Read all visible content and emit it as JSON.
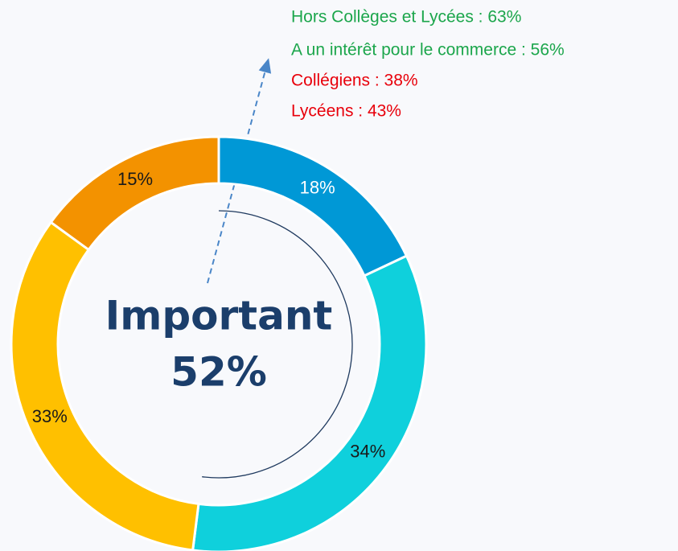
{
  "chart_data": {
    "type": "donut",
    "categories": [
      null,
      null,
      null,
      null
    ],
    "values": [
      18,
      34,
      33,
      15
    ],
    "value_labels": [
      "18%",
      "34%",
      "33%",
      "15%"
    ],
    "colors": [
      "#0098d6",
      "#0fd0dc",
      "#ffc000",
      "#f39200"
    ],
    "label_colors": [
      "#ffffff",
      "#1a1a1a",
      "#1a1a1a",
      "#1a1a1a"
    ],
    "center_title": "Important",
    "center_value": 52,
    "center_value_label": "52%",
    "annotations": [
      {
        "text": "Hors Collèges et Lycées : 63%",
        "color": "#1ca64c"
      },
      {
        "text": "A un intérêt pour le commerce : 56%",
        "color": "#1ca64c"
      },
      {
        "text": "Collégiens : 38%",
        "color": "#e8000b"
      },
      {
        "text": "Lycéens : 43%",
        "color": "#e8000b"
      }
    ]
  }
}
